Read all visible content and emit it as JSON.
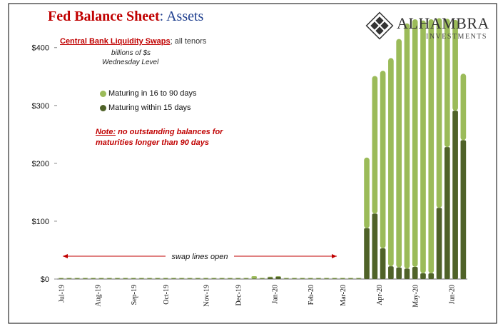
{
  "title": {
    "part1": "Fed Balance Sheet",
    "part2": ": Assets"
  },
  "subtitle": {
    "main": "Central Bank Liquidity Swaps",
    "rest": "; all tenors"
  },
  "units": "billions of $s",
  "level": "Wednesday Level",
  "logo": {
    "brand": "ALHAMBRA",
    "sub": "INVESTMENTS"
  },
  "note": {
    "label": "Note:",
    "line1": " no outstanding balances for",
    "line2": "maturities longer than 90 days"
  },
  "colors": {
    "long": "#9bbb59",
    "short": "#4f6228",
    "arrow": "#c00000"
  },
  "chart_data": {
    "type": "bar",
    "stacked": true,
    "ylim": [
      0,
      470
    ],
    "yticks": [
      "$0",
      "$100",
      "$200",
      "$300",
      "$400"
    ],
    "ytick_values": [
      0,
      100,
      200,
      300,
      400
    ],
    "xtick_labels": [
      "Jul-19",
      "Aug-19",
      "Sep-19",
      "Oct-19",
      "Nov-19",
      "Dec-19",
      "Jan-20",
      "Feb-20",
      "Mar-20",
      "Apr-20",
      "May-20",
      "Jun-20"
    ],
    "xtick_index": [
      0,
      4.5,
      9,
      13,
      18,
      22,
      26.5,
      31,
      35,
      39.5,
      44,
      48.5
    ],
    "annotation": "swap lines open",
    "series": [
      {
        "name": "Maturing within 15 days",
        "values": [
          1,
          1,
          1,
          1,
          1,
          1,
          1,
          1,
          1,
          1,
          1,
          1,
          1,
          1,
          1,
          1,
          1,
          1,
          1,
          1,
          1,
          1,
          1,
          1,
          1,
          1,
          3,
          4,
          1,
          1,
          1,
          1,
          1,
          1,
          1,
          1,
          1,
          1,
          88,
          113,
          53,
          22,
          20,
          18,
          21,
          10,
          10,
          123,
          228,
          291,
          240
        ]
      },
      {
        "name": "Maturing in 16 to 90 days",
        "values": [
          1,
          1,
          1,
          1,
          1,
          1,
          1,
          1,
          1,
          1,
          1,
          1,
          1,
          1,
          1,
          1,
          1,
          1,
          1,
          1,
          1,
          1,
          1,
          1,
          4,
          1,
          1,
          1,
          1,
          1,
          1,
          1,
          1,
          1,
          1,
          1,
          1,
          1,
          122,
          238,
          307,
          360,
          395,
          424,
          428,
          437,
          439,
          328,
          222,
          157,
          115
        ]
      }
    ],
    "legend": [
      "Maturing in 16 to 90 days",
      "Maturing within 15 days"
    ]
  }
}
